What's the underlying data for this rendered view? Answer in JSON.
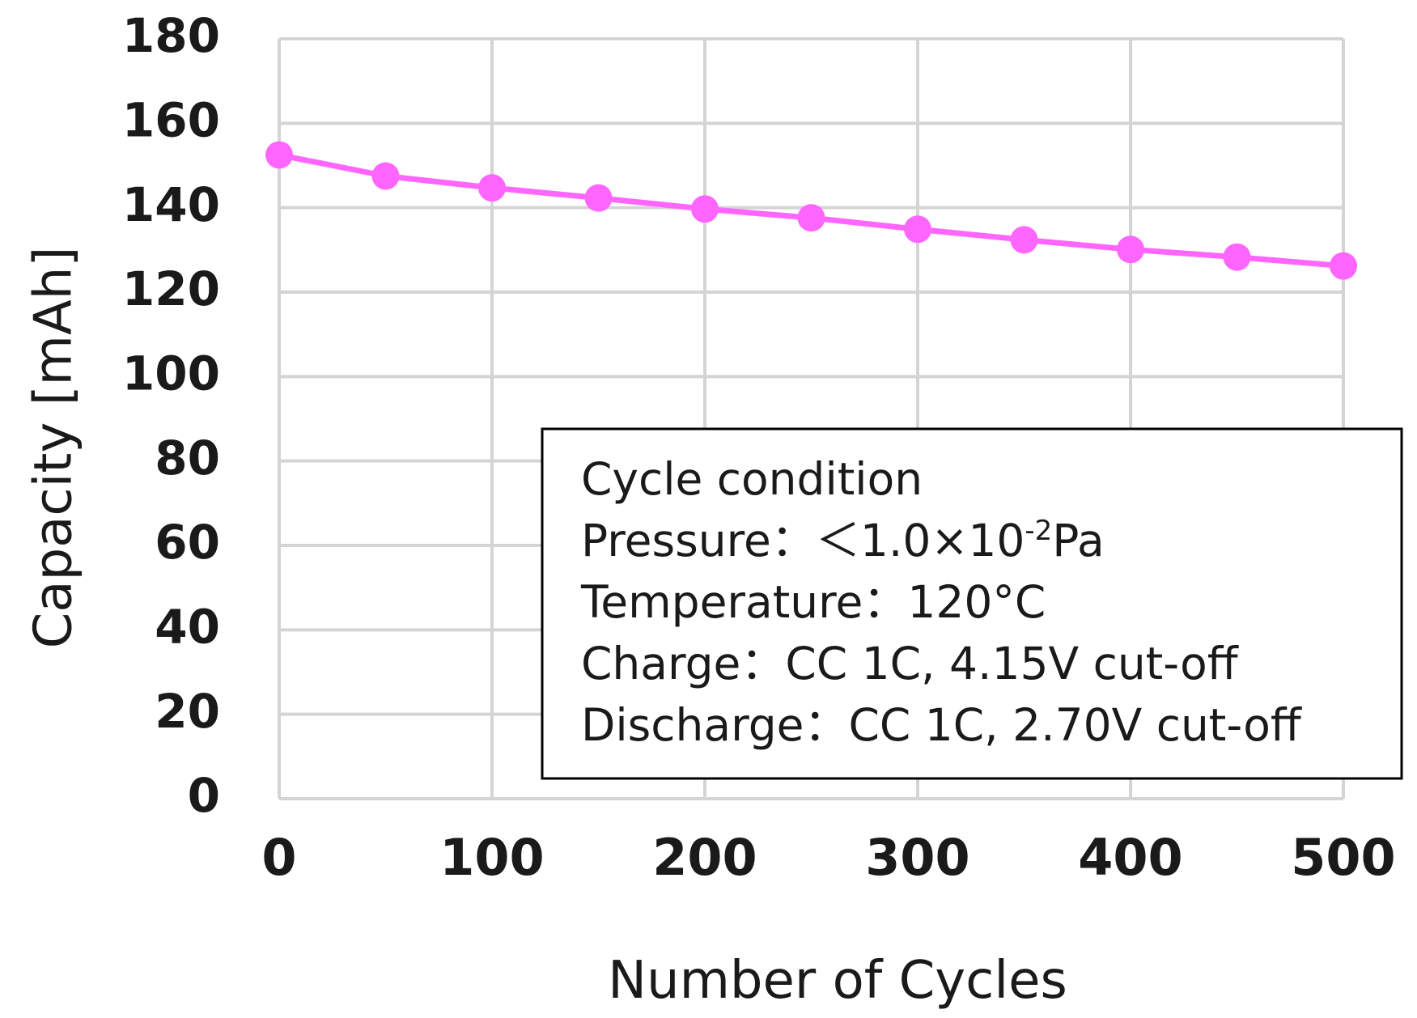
{
  "chart_data": {
    "type": "line",
    "title": "",
    "xlabel": "Number of Cycles",
    "ylabel": "Capacity [mAh]",
    "xlim": [
      0,
      500
    ],
    "ylim": [
      0,
      180
    ],
    "x_ticks": [
      0,
      100,
      200,
      300,
      400,
      500
    ],
    "y_ticks": [
      0,
      20,
      40,
      60,
      80,
      100,
      120,
      140,
      160,
      180
    ],
    "grid": true,
    "series": [
      {
        "name": "Capacity",
        "color": "#ff66ff",
        "marker": "circle",
        "x": [
          0,
          50,
          100,
          150,
          200,
          250,
          300,
          350,
          400,
          450,
          500
        ],
        "values": [
          152.5,
          147.5,
          144.7,
          142.3,
          139.7,
          137.6,
          134.9,
          132.4,
          130.1,
          128.3,
          126.2
        ]
      }
    ],
    "annotation": {
      "lines": [
        "Cycle condition",
        "Pressure：＜1.0×10",
        "Temperature：120°C",
        "Charge：CC 1C, 4.15V cut-off",
        "Discharge：CC 1C, 2.70V cut-off"
      ],
      "pressure_exponent": "-2",
      "pressure_unit": "Pa"
    }
  }
}
